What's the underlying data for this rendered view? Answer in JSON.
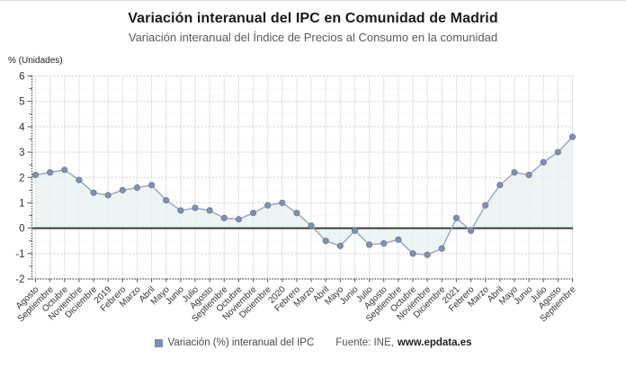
{
  "chart_data": {
    "type": "line",
    "title": "Variación interanual del IPC en Comunidad de Madrid",
    "subtitle": "Variación interanual del Índice de Precios al Consumo en la comunidad",
    "ylabel": "% (Unidades)",
    "xlabel": "",
    "ylim": [
      -2,
      6
    ],
    "ytick_step": 1,
    "grid": true,
    "legend_position": "bottom",
    "legend": [
      "Variación (%) interanual del IPC"
    ],
    "categories": [
      "Agosto",
      "Septiembre",
      "Octubre",
      "Noviembre",
      "Diciembre",
      "2019",
      "Febrero",
      "Marzo",
      "Abril",
      "Mayo",
      "Junio",
      "Julio",
      "Agosto",
      "Septiembre",
      "Octubre",
      "Noviembre",
      "Diciembre",
      "2020",
      "Febrero",
      "Marzo",
      "Abril",
      "Mayo",
      "Junio",
      "Julio",
      "Agosto",
      "Septiembre",
      "Octubre",
      "Noviembre",
      "Diciembre",
      "2021",
      "Febrero",
      "Marzo",
      "Abril",
      "Mayo",
      "Junio",
      "Julio",
      "Agosto",
      "Septiembre"
    ],
    "series": [
      {
        "name": "Variación (%) interanual del IPC",
        "values": [
          2.1,
          2.2,
          2.3,
          1.9,
          1.4,
          1.3,
          1.5,
          1.6,
          1.7,
          1.1,
          0.7,
          0.8,
          0.7,
          0.4,
          0.35,
          0.6,
          0.9,
          1.0,
          0.6,
          0.1,
          -0.5,
          -0.7,
          -0.1,
          -0.65,
          -0.6,
          -0.45,
          -1.0,
          -1.05,
          -0.8,
          0.4,
          -0.1,
          0.9,
          1.7,
          2.2,
          2.1,
          2.6,
          3.0,
          3.6
        ]
      }
    ],
    "colors": {
      "line": "#99a4ba",
      "marker": "#8290ae",
      "marker_border": "#71809e",
      "area_fill": "#e9f1f0",
      "zero_line": "#3b3b3b",
      "grid_major": "#c7ccd6",
      "grid_minor": "#e5e9ef",
      "grid_vertical": "#dfe3e9",
      "axis": "#555555",
      "tick_label": "#333333",
      "legend_swatch": "#7b8fb5"
    }
  },
  "source": {
    "label": "Fuente: INE,",
    "url": "www.epdata.es"
  }
}
